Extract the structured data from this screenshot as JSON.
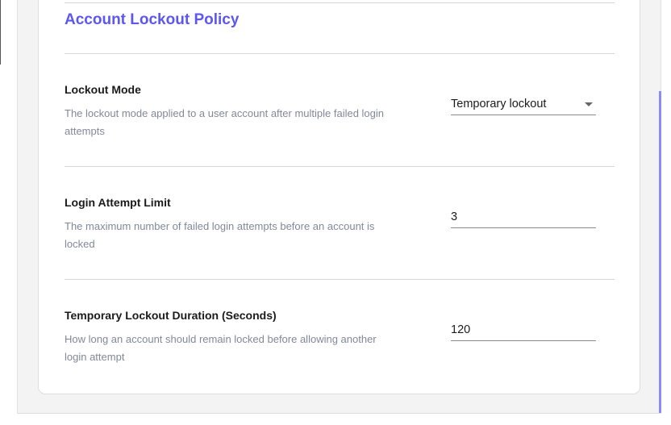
{
  "section": {
    "title": "Account Lockout Policy"
  },
  "settings": [
    {
      "label": "Lockout Mode",
      "description": "The lockout mode applied to a user account after multiple failed login attempts",
      "value": "Temporary lockout",
      "type": "select"
    },
    {
      "label": "Login Attempt Limit",
      "description": "The maximum number of failed login attempts before an account is locked",
      "value": "3",
      "type": "text"
    },
    {
      "label": "Temporary Lockout Duration (Seconds)",
      "description": "How long an account should remain locked before allowing another login attempt",
      "value": "120",
      "type": "text"
    }
  ],
  "colors": {
    "accent": "#5b57f0",
    "scrollbar": "#8b8bf5"
  }
}
